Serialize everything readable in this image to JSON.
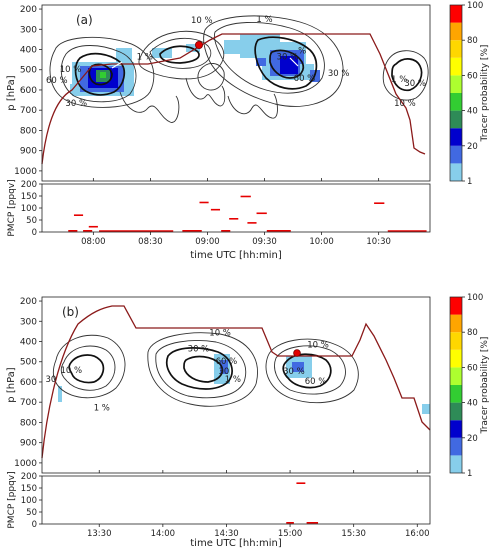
{
  "chart_data": [
    {
      "panel_id": "a",
      "type": "heatmap",
      "panel_label": "(a)",
      "ylabel": "p [hPa]",
      "yticks": [
        200,
        300,
        400,
        500,
        600,
        700,
        800,
        900,
        1000
      ],
      "ylim": [
        1050,
        180
      ],
      "xlim_hours": [
        7.55,
        10.95
      ],
      "contour_labels": [
        {
          "text": "10 %",
          "x": 8.95,
          "y": 270
        },
        {
          "text": "1 %",
          "x": 9.5,
          "y": 265
        },
        {
          "text": "10 %",
          "x": 7.8,
          "y": 510
        },
        {
          "text": "60 %",
          "x": 7.68,
          "y": 565
        },
        {
          "text": "30 %",
          "x": 7.85,
          "y": 680
        },
        {
          "text": "1 %",
          "x": 8.45,
          "y": 450
        },
        {
          "text": "%",
          "x": 9.83,
          "y": 420
        },
        {
          "text": "30 %",
          "x": 9.7,
          "y": 450
        },
        {
          "text": "60 %",
          "x": 9.85,
          "y": 555
        },
        {
          "text": "30 %",
          "x": 10.15,
          "y": 530
        },
        {
          "text": "1 %",
          "x": 10.68,
          "y": 560
        },
        {
          "text": "30 %",
          "x": 10.82,
          "y": 580
        },
        {
          "text": "10 %",
          "x": 10.73,
          "y": 680
        }
      ],
      "colorbar": {
        "label": "Tracer probability [%]",
        "ticks": [
          "1",
          "20",
          "40",
          "60",
          "80",
          "100"
        ]
      },
      "pmcp": {
        "ylabel": "PMCP [ppqv]",
        "yticks": [
          0,
          50,
          100,
          150,
          200
        ],
        "ylim": [
          0,
          200
        ],
        "xlabel": "time UTC [hh:min]",
        "xtick_labels": [
          "08:00",
          "08:30",
          "09:00",
          "09:30",
          "10:00",
          "10:30"
        ],
        "xticks_hours": [
          8.0,
          8.5,
          9.0,
          9.5,
          10.0,
          10.5
        ],
        "segments": [
          {
            "t0": 7.78,
            "t1": 7.86,
            "v": 5
          },
          {
            "t0": 7.83,
            "t1": 7.91,
            "v": 70
          },
          {
            "t0": 7.91,
            "t1": 7.99,
            "v": 5
          },
          {
            "t0": 7.96,
            "t1": 8.04,
            "v": 22
          },
          {
            "t0": 8.05,
            "t1": 8.7,
            "v": 4
          },
          {
            "t0": 8.78,
            "t1": 8.95,
            "v": 5
          },
          {
            "t0": 8.93,
            "t1": 9.01,
            "v": 123
          },
          {
            "t0": 9.03,
            "t1": 9.11,
            "v": 93
          },
          {
            "t0": 9.12,
            "t1": 9.2,
            "v": 5
          },
          {
            "t0": 9.19,
            "t1": 9.27,
            "v": 55
          },
          {
            "t0": 9.29,
            "t1": 9.38,
            "v": 148
          },
          {
            "t0": 9.35,
            "t1": 9.43,
            "v": 38
          },
          {
            "t0": 9.43,
            "t1": 9.52,
            "v": 78
          },
          {
            "t0": 9.52,
            "t1": 9.73,
            "v": 5
          },
          {
            "t0": 10.46,
            "t1": 10.55,
            "v": 120
          },
          {
            "t0": 10.58,
            "t1": 10.92,
            "v": 4
          }
        ]
      }
    },
    {
      "panel_id": "b",
      "type": "heatmap",
      "panel_label": "(b)",
      "ylabel": "p [hPa]",
      "yticks": [
        200,
        300,
        400,
        500,
        600,
        700,
        800,
        900,
        1000
      ],
      "ylim": [
        1050,
        180
      ],
      "xlim_hours": [
        13.05,
        16.1
      ],
      "contour_labels": [
        {
          "text": "10 %",
          "x": 14.45,
          "y": 370
        },
        {
          "text": "30 %",
          "x": 14.28,
          "y": 450
        },
        {
          "text": "60 %",
          "x": 14.5,
          "y": 510
        },
        {
          "text": "1 %",
          "x": 14.55,
          "y": 600
        },
        {
          "text": "30",
          "x": 14.48,
          "y": 560
        },
        {
          "text": "10 %",
          "x": 13.28,
          "y": 555
        },
        {
          "text": "30",
          "x": 13.12,
          "y": 600
        },
        {
          "text": "1 %",
          "x": 13.52,
          "y": 740
        },
        {
          "text": "10 %",
          "x": 15.22,
          "y": 430
        },
        {
          "text": "30 %",
          "x": 15.03,
          "y": 560
        },
        {
          "text": "60 %",
          "x": 15.2,
          "y": 610
        }
      ],
      "colorbar": {
        "label": "Tracer probability [%]",
        "ticks": [
          "1",
          "20",
          "40",
          "60",
          "80",
          "100"
        ]
      },
      "pmcp": {
        "ylabel": "PMCP [ppqv]",
        "yticks": [
          0,
          50,
          100,
          150,
          200
        ],
        "ylim": [
          0,
          200
        ],
        "xlabel": "time UTC [hh:min]",
        "xtick_labels": [
          "13:30",
          "14:00",
          "14:30",
          "15:00",
          "15:30",
          "16:00"
        ],
        "xticks_hours": [
          13.5,
          14.0,
          14.5,
          15.0,
          15.5,
          16.0
        ],
        "segments": [
          {
            "t0": 14.97,
            "t1": 15.03,
            "v": 5
          },
          {
            "t0": 15.05,
            "t1": 15.12,
            "v": 170
          },
          {
            "t0": 15.13,
            "t1": 15.22,
            "v": 5
          }
        ]
      }
    }
  ]
}
